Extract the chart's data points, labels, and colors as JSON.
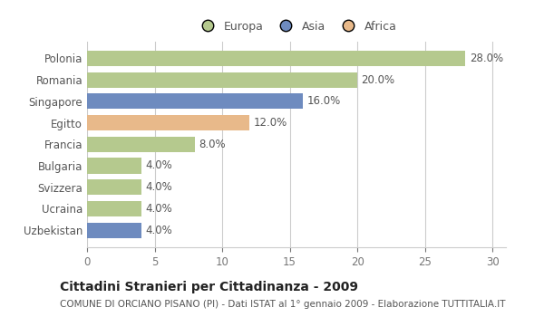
{
  "categories": [
    "Polonia",
    "Romania",
    "Singapore",
    "Egitto",
    "Francia",
    "Bulgaria",
    "Svizzera",
    "Ucraina",
    "Uzbekistan"
  ],
  "values": [
    28.0,
    20.0,
    16.0,
    12.0,
    8.0,
    4.0,
    4.0,
    4.0,
    4.0
  ],
  "colors": [
    "#b5c98e",
    "#b5c98e",
    "#6e8bbf",
    "#e8b98a",
    "#b5c98e",
    "#b5c98e",
    "#b5c98e",
    "#b5c98e",
    "#6e8bbf"
  ],
  "legend_labels": [
    "Europa",
    "Asia",
    "Africa"
  ],
  "legend_colors": [
    "#b5c98e",
    "#6e8bbf",
    "#e8b98a"
  ],
  "xlim": [
    0,
    31
  ],
  "xticks": [
    0,
    5,
    10,
    15,
    20,
    25,
    30
  ],
  "title": "Cittadini Stranieri per Cittadinanza - 2009",
  "subtitle": "COMUNE DI ORCIANO PISANO (PI) - Dati ISTAT al 1° gennaio 2009 - Elaborazione TUTTITALIA.IT",
  "title_fontsize": 10,
  "subtitle_fontsize": 7.5,
  "label_fontsize": 8.5,
  "tick_fontsize": 8.5,
  "legend_fontsize": 9,
  "background_color": "#ffffff",
  "grid_color": "#cccccc",
  "bar_height": 0.72
}
